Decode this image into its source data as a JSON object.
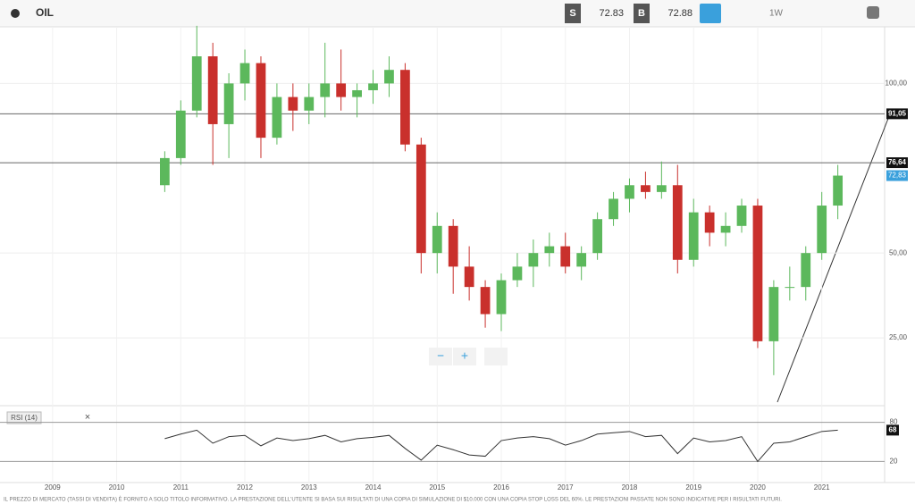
{
  "toolbar": {
    "symbol": "OIL",
    "sell_label": "S",
    "sell": "72.83",
    "buy_label": "B",
    "buy": "72.88",
    "timeframe": "1W"
  },
  "chart_data": {
    "type": "candlestick",
    "x": [
      2010.75,
      2011.0,
      2011.25,
      2011.5,
      2011.75,
      2012.0,
      2012.25,
      2012.5,
      2012.75,
      2013.0,
      2013.25,
      2013.5,
      2013.75,
      2014.0,
      2014.25,
      2014.5,
      2014.75,
      2015.0,
      2015.25,
      2015.5,
      2015.75,
      2016.0,
      2016.25,
      2016.5,
      2016.75,
      2017.0,
      2017.25,
      2017.5,
      2017.75,
      2018.0,
      2018.25,
      2018.5,
      2018.75,
      2019.0,
      2019.25,
      2019.5,
      2019.75,
      2020.0,
      2020.25,
      2020.5,
      2020.75,
      2021.0,
      2021.25
    ],
    "open": [
      70,
      78,
      92,
      108,
      88,
      100,
      106,
      84,
      96,
      92,
      96,
      100,
      96,
      98,
      100,
      104,
      82,
      50,
      58,
      46,
      40,
      32,
      42,
      46,
      50,
      52,
      46,
      50,
      60,
      66,
      70,
      68,
      70,
      48,
      62,
      56,
      58,
      64,
      24,
      40,
      40,
      50,
      64
    ],
    "high": [
      80,
      95,
      117,
      112,
      103,
      110,
      108,
      100,
      100,
      100,
      112,
      110,
      100,
      104,
      108,
      106,
      84,
      62,
      60,
      52,
      42,
      44,
      50,
      54,
      56,
      56,
      52,
      62,
      68,
      72,
      74,
      77,
      76,
      66,
      64,
      62,
      66,
      66,
      42,
      46,
      52,
      68,
      76
    ],
    "low": [
      68,
      76,
      90,
      76,
      78,
      95,
      78,
      82,
      86,
      88,
      90,
      92,
      90,
      94,
      96,
      80,
      44,
      44,
      38,
      36,
      28,
      27,
      40,
      40,
      46,
      44,
      42,
      48,
      58,
      62,
      66,
      66,
      44,
      46,
      52,
      52,
      56,
      22,
      14,
      36,
      36,
      48,
      60
    ],
    "close": [
      78,
      92,
      108,
      88,
      100,
      106,
      84,
      96,
      92,
      96,
      100,
      96,
      98,
      100,
      104,
      82,
      50,
      58,
      46,
      40,
      32,
      42,
      46,
      50,
      52,
      46,
      50,
      60,
      66,
      70,
      68,
      70,
      48,
      62,
      56,
      58,
      64,
      24,
      40,
      40,
      50,
      64,
      72.83
    ],
    "up_color": "#5cb85c",
    "down_color": "#c9302c",
    "xlim": [
      2008.18,
      2021.98
    ],
    "xticks": [
      2009,
      2010,
      2011,
      2012,
      2013,
      2014,
      2015,
      2016,
      2017,
      2018,
      2019,
      2020,
      2021
    ],
    "ylim": [
      5,
      116.7
    ],
    "yticks": [
      {
        "value": 25,
        "label": "25,00"
      },
      {
        "value": 50,
        "label": "50,00"
      },
      {
        "value": 100,
        "label": "100,00"
      }
    ],
    "levels": [
      {
        "value": 91.05,
        "label": "91,05"
      },
      {
        "value": 76.64,
        "label": "76,64"
      }
    ],
    "current": {
      "value": 72.83,
      "label": "72,83"
    },
    "indicator": {
      "name": "RSI (14)",
      "ylim": [
        0,
        100
      ],
      "yticks": [
        20,
        80
      ],
      "current": 68,
      "values": [
        55,
        62,
        68,
        48,
        58,
        60,
        44,
        56,
        52,
        55,
        60,
        50,
        55,
        57,
        60,
        40,
        22,
        45,
        38,
        30,
        28,
        52,
        56,
        58,
        55,
        45,
        52,
        62,
        64,
        66,
        58,
        60,
        32,
        56,
        50,
        52,
        58,
        20,
        48,
        50,
        58,
        66,
        68
      ]
    }
  },
  "disclaimer": "IL PREZZO DI MERCATO (TASSI DI VENDITA) È FORNITO A SOLO TITOLO INFORMATIVO. LA PRESTAZIONE DELL'UTENTE SI BASA SUI RISULTATI DI UNA COPIA DI SIMULAZIONE DI $10.000 CON UNA COPIA STOP LOSS DEL 60%. LE PRESTAZIONI PASSATE NON SONO INDICATIVE PER I RISULTATI FUTURI."
}
